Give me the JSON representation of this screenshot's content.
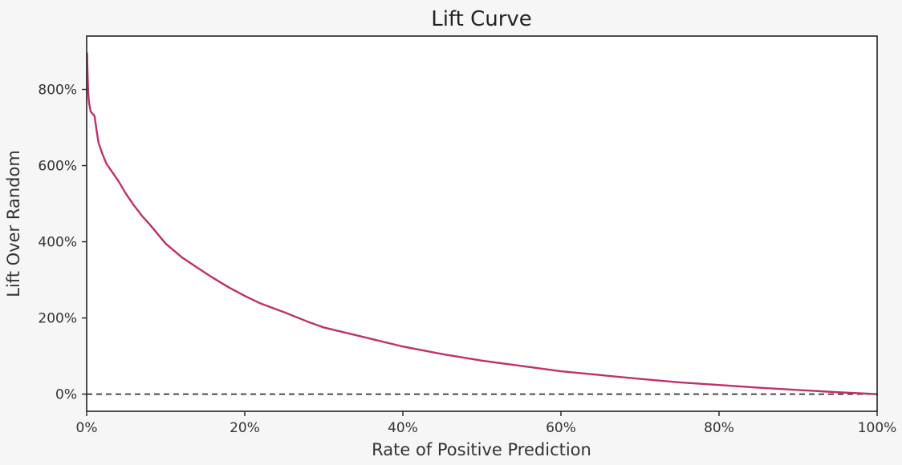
{
  "chart_data": {
    "type": "line",
    "title": "Lift Curve",
    "xlabel": "Rate of Positive Prediction",
    "ylabel": "Lift Over Random",
    "xlim": [
      0,
      100
    ],
    "ylim": [
      -45,
      940
    ],
    "x_ticks": [
      0,
      20,
      40,
      60,
      80,
      100
    ],
    "x_tick_labels": [
      "0%",
      "20%",
      "40%",
      "60%",
      "80%",
      "100%"
    ],
    "y_ticks": [
      0,
      200,
      400,
      600,
      800
    ],
    "y_tick_labels": [
      "0%",
      "200%",
      "400%",
      "600%",
      "800%"
    ],
    "grid": false,
    "legend": "none",
    "series": [
      {
        "color": "#c0306a",
        "x": [
          0.05,
          0.1,
          0.2,
          0.3,
          0.5,
          0.8,
          1.0,
          1.2,
          1.5,
          2,
          2.5,
          3,
          4,
          5,
          6,
          7,
          8,
          9,
          10,
          12,
          14,
          16,
          18,
          20,
          22,
          25,
          28,
          30,
          35,
          40,
          45,
          50,
          55,
          60,
          65,
          70,
          75,
          80,
          85,
          90,
          95,
          100
        ],
        "values": [
          895,
          850,
          790,
          765,
          742,
          735,
          730,
          700,
          660,
          630,
          605,
          590,
          560,
          525,
          495,
          468,
          445,
          420,
          395,
          360,
          332,
          305,
          280,
          258,
          238,
          215,
          190,
          175,
          150,
          125,
          105,
          88,
          74,
          60,
          50,
          40,
          31,
          24,
          17,
          11,
          5,
          0
        ]
      }
    ],
    "reference_line": {
      "y": 0,
      "style": "dashed",
      "color": "#333333"
    }
  }
}
